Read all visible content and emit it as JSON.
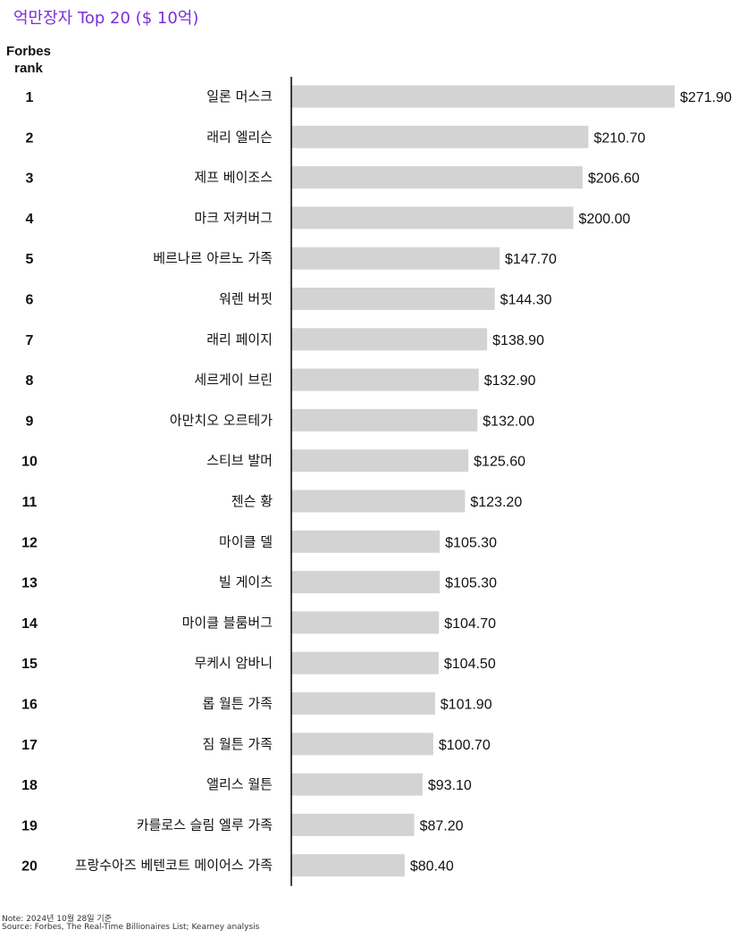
{
  "title": "억만장자 Top 20 ($ 10억)",
  "rank_header_line1": "Forbes",
  "rank_header_line2": "rank",
  "note": "Note: 2024년 10월 28일 기준",
  "source": "Source: Forbes, The Real-Time Billionaires List; Kearney analysis",
  "colors": {
    "title": "#7b2fd9",
    "bar": "#d3d3d3",
    "axis": "#000000"
  },
  "chart_data": {
    "type": "bar",
    "orientation": "horizontal",
    "title": "억만장자 Top 20 ($ 10억)",
    "xlim": [
      0,
      271.9
    ],
    "grid": false,
    "ranks": [
      "1",
      "2",
      "3",
      "4",
      "5",
      "6",
      "7",
      "8",
      "9",
      "10",
      "11",
      "12",
      "13",
      "14",
      "15",
      "16",
      "17",
      "18",
      "19",
      "20"
    ],
    "categories": [
      "일론 머스크",
      "래리 엘리슨",
      "제프 베이조스",
      "마크 저커버그",
      "베르나르 아르노 가족",
      "워렌 버핏",
      "래리 페이지",
      "세르게이 브린",
      "아만치오 오르테가",
      "스티브 발머",
      "젠슨 황",
      "마이클 델",
      "빌 게이츠",
      "마이클 블룸버그",
      "무케시 암바니",
      "롭 월튼 가족",
      "짐 월튼 가족",
      "앨리스 월튼",
      "카를로스 슬림 엘루 가족",
      "프랑수아즈 베텐코트 메이어스 가족"
    ],
    "values": [
      271.9,
      210.7,
      206.6,
      200.0,
      147.7,
      144.3,
      138.9,
      132.9,
      132.0,
      125.6,
      123.2,
      105.3,
      105.3,
      104.7,
      104.5,
      101.9,
      100.7,
      93.1,
      87.2,
      80.4
    ],
    "value_labels": [
      "$271.90",
      "$210.70",
      "$206.60",
      "$200.00",
      "$147.70",
      "$144.30",
      "$138.90",
      "$132.90",
      "$132.00",
      "$125.60",
      "$123.20",
      "$105.30",
      "$105.30",
      "$104.70",
      "$104.50",
      "$101.90",
      "$100.70",
      "$93.10",
      "$87.20",
      "$80.40"
    ]
  }
}
